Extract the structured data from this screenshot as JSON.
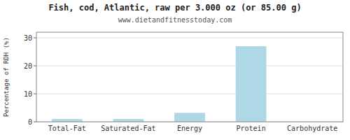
{
  "chart_data": {
    "type": "bar",
    "title": "Fish, cod, Atlantic, raw per 3.000 oz (or 85.00 g)",
    "subtitle": "www.dietandfitnesstoday.com",
    "categories": [
      "Total-Fat",
      "Saturated-Fat",
      "Energy",
      "Protein",
      "Carbohydrate"
    ],
    "values": [
      1.0,
      1.0,
      3.2,
      27.0,
      0.0
    ],
    "color": "#aed8e6",
    "ylabel": "Percentage of RDH (%)",
    "ylim": [
      0,
      32
    ],
    "yticks": [
      0,
      10,
      20,
      30
    ],
    "grid": true
  }
}
